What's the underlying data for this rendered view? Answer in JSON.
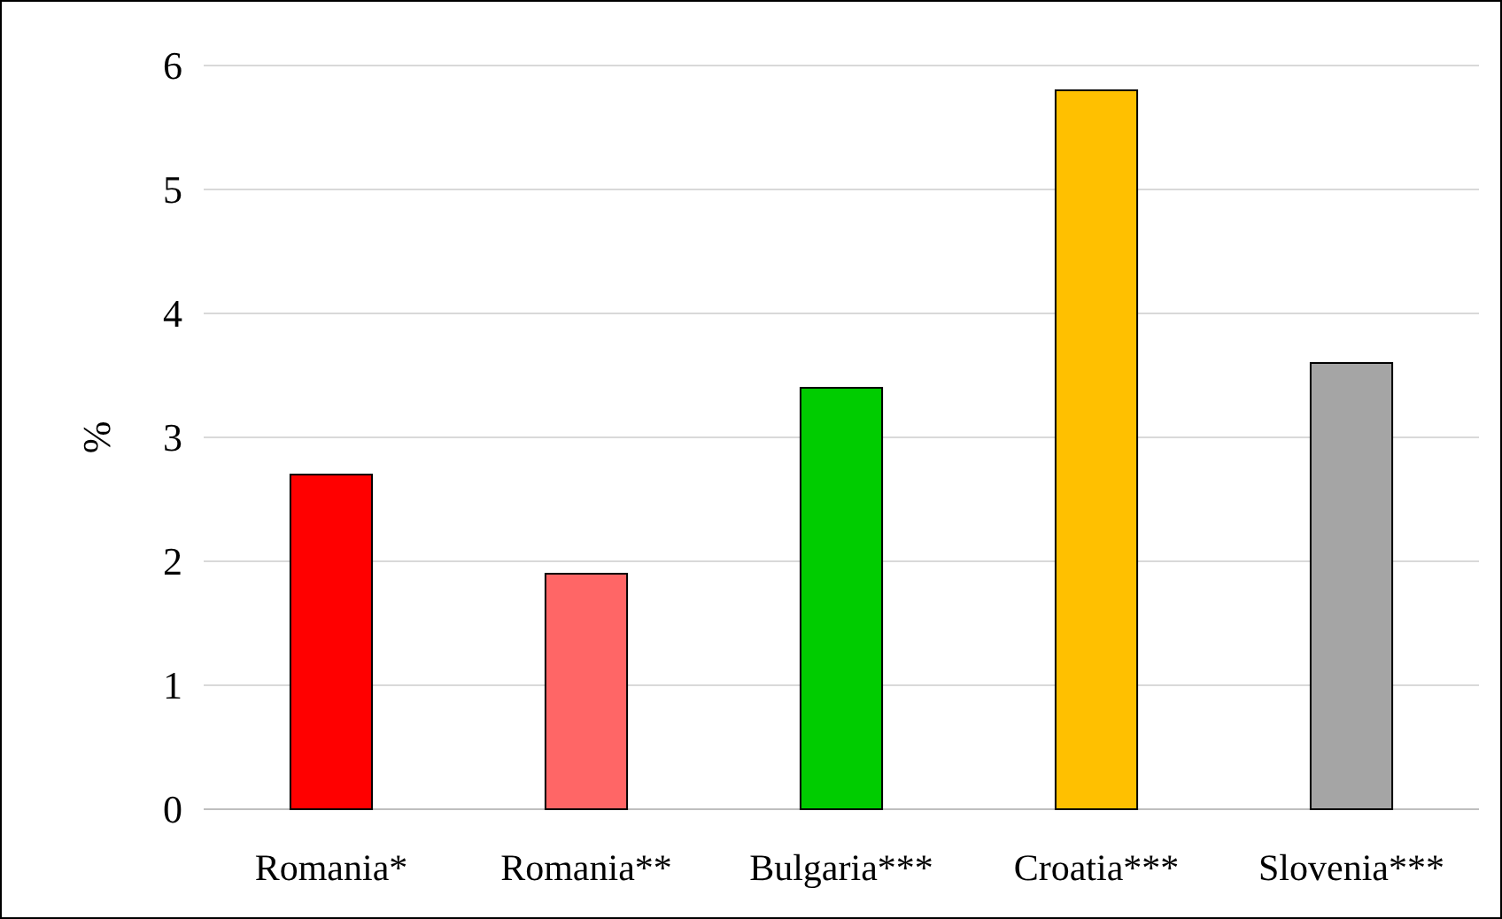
{
  "chart_data": {
    "type": "bar",
    "ylabel": "%",
    "categories": [
      "Romania*",
      "Romania**",
      "Bulgaria***",
      "Croatia***",
      "Slovenia***"
    ],
    "values": [
      2.7,
      1.9,
      3.4,
      5.8,
      3.6
    ],
    "colors": [
      "#ff0000",
      "#ff6666",
      "#00cc00",
      "#ffc000",
      "#a5a5a5"
    ],
    "ylim": [
      0,
      6
    ],
    "yticks": [
      0,
      1,
      2,
      3,
      4,
      5,
      6
    ],
    "grid": "y"
  }
}
